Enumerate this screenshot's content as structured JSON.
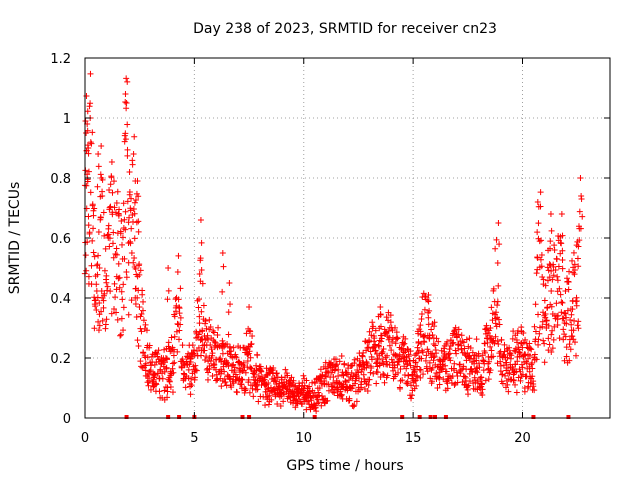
{
  "chart_data": {
    "type": "scatter",
    "title": "Day 238 of 2023, SRMTID for receiver cn23",
    "xlabel": "GPS time / hours",
    "ylabel": "SRMTID / TECUs",
    "xlim": [
      0,
      24
    ],
    "ylim": [
      0,
      1.2
    ],
    "grid": true,
    "marker": "+",
    "color": "#ff0000",
    "x_ticks": [
      0,
      5,
      10,
      15,
      20
    ],
    "x_tick_labels": [
      "0",
      "5",
      "10",
      "15",
      "20"
    ],
    "y_ticks": [
      0,
      0.2,
      0.4,
      0.6,
      0.8,
      1.0,
      1.2
    ],
    "y_tick_labels": [
      "0",
      "0.2",
      "0.4",
      "0.6",
      "0.8",
      "1",
      "1.2"
    ],
    "anchors": [
      [
        0.0,
        0.72
      ],
      [
        0.25,
        0.88
      ],
      [
        0.5,
        0.32
      ],
      [
        0.75,
        0.62
      ],
      [
        1.0,
        0.45
      ],
      [
        1.25,
        0.6
      ],
      [
        1.5,
        0.52
      ],
      [
        1.75,
        0.48
      ],
      [
        1.85,
        1.02
      ],
      [
        2.0,
        0.55
      ],
      [
        2.25,
        0.65
      ],
      [
        2.5,
        0.38
      ],
      [
        2.75,
        0.22
      ],
      [
        3.0,
        0.18
      ],
      [
        3.5,
        0.15
      ],
      [
        4.0,
        0.18
      ],
      [
        4.25,
        0.38
      ],
      [
        4.5,
        0.15
      ],
      [
        5.0,
        0.17
      ],
      [
        5.25,
        0.42
      ],
      [
        5.5,
        0.22
      ],
      [
        6.0,
        0.2
      ],
      [
        6.5,
        0.18
      ],
      [
        7.0,
        0.16
      ],
      [
        7.5,
        0.2
      ],
      [
        8.0,
        0.12
      ],
      [
        9.0,
        0.1
      ],
      [
        9.5,
        0.09
      ],
      [
        10.0,
        0.08
      ],
      [
        10.5,
        0.07
      ],
      [
        11.0,
        0.12
      ],
      [
        11.5,
        0.14
      ],
      [
        12.0,
        0.11
      ],
      [
        12.5,
        0.13
      ],
      [
        13.0,
        0.2
      ],
      [
        13.5,
        0.25
      ],
      [
        14.0,
        0.23
      ],
      [
        14.5,
        0.2
      ],
      [
        15.0,
        0.12
      ],
      [
        15.5,
        0.3
      ],
      [
        16.0,
        0.2
      ],
      [
        16.5,
        0.17
      ],
      [
        17.0,
        0.2
      ],
      [
        17.5,
        0.18
      ],
      [
        18.0,
        0.16
      ],
      [
        18.5,
        0.22
      ],
      [
        18.8,
        0.42
      ],
      [
        19.0,
        0.2
      ],
      [
        19.5,
        0.18
      ],
      [
        20.0,
        0.2
      ],
      [
        20.5,
        0.16
      ],
      [
        20.8,
        0.55
      ],
      [
        21.0,
        0.35
      ],
      [
        21.5,
        0.45
      ],
      [
        21.8,
        0.5
      ],
      [
        22.0,
        0.3
      ],
      [
        22.3,
        0.38
      ],
      [
        22.6,
        0.45
      ]
    ],
    "spikes": [
      [
        0.05,
        0.95
      ],
      [
        0.1,
        0.98
      ],
      [
        0.15,
        0.9
      ],
      [
        0.6,
        0.88
      ],
      [
        0.75,
        0.8
      ],
      [
        1.1,
        0.76
      ],
      [
        1.85,
        1.08
      ],
      [
        1.9,
        1.05
      ],
      [
        2.3,
        0.79
      ],
      [
        2.4,
        0.79
      ],
      [
        3.8,
        0.5
      ],
      [
        5.3,
        0.66
      ],
      [
        6.3,
        0.55
      ],
      [
        6.6,
        0.45
      ],
      [
        7.5,
        0.37
      ],
      [
        13.5,
        0.37
      ],
      [
        15.7,
        0.41
      ],
      [
        18.9,
        0.65
      ],
      [
        20.7,
        0.72
      ],
      [
        21.3,
        0.68
      ],
      [
        21.8,
        0.68
      ],
      [
        22.65,
        0.8
      ],
      [
        22.7,
        0.73
      ]
    ],
    "zero_markers": [
      1.9,
      3.8,
      4.3,
      5.0,
      7.2,
      7.5,
      10.5,
      14.5,
      15.3,
      15.8,
      16.0,
      16.5,
      20.5,
      22.1
    ]
  }
}
